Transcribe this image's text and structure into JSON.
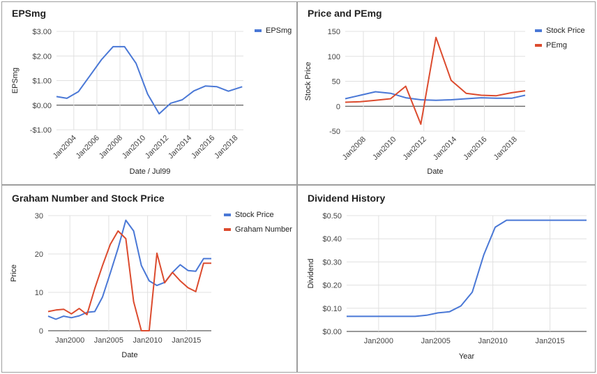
{
  "chart_data": [
    {
      "type": "line",
      "title": "EPSmg",
      "xlabel": "Date / Jul99",
      "ylabel": "EPSmg",
      "x_range": [
        2002.5,
        2018.7
      ],
      "ylim": [
        -1,
        3
      ],
      "y_ticks": [
        -1,
        0,
        1,
        2,
        3
      ],
      "y_tick_labels": [
        "-$1.00",
        "$0.00",
        "$1.00",
        "$2.00",
        "$3.00"
      ],
      "x_ticks": [
        2004,
        2006,
        2008,
        2010,
        2012,
        2014,
        2016,
        2018
      ],
      "x_tick_labels": [
        "Jan2004",
        "Jan2006",
        "Jan2008",
        "Jan2010",
        "Jan2012",
        "Jan2014",
        "Jan2016",
        "Jan2018"
      ],
      "x_ticks_rotated": true,
      "legend": "right",
      "grid": true,
      "series": [
        {
          "name": "EPSmg",
          "color": "#4a78d6",
          "x": [
            2002.5,
            2003.4,
            2004.4,
            2005.4,
            2006.4,
            2007.4,
            2008.4,
            2009.4,
            2010.4,
            2011.4,
            2012.4,
            2013.4,
            2014.4,
            2015.4,
            2016.4,
            2017.4,
            2018.6
          ],
          "y": [
            0.35,
            0.28,
            0.55,
            1.2,
            1.85,
            2.38,
            2.38,
            1.7,
            0.45,
            -0.35,
            0.08,
            0.22,
            0.58,
            0.78,
            0.75,
            0.57,
            0.75
          ]
        }
      ]
    },
    {
      "type": "line",
      "title": "Price and PEmg",
      "xlabel": "Date",
      "ylabel": "Stock Price",
      "x_range": [
        2006.8,
        2018.7
      ],
      "ylim": [
        -50,
        150
      ],
      "y_ticks": [
        -50,
        0,
        50,
        100,
        150
      ],
      "y_tick_labels": [
        "-50",
        "0",
        "50",
        "100",
        "150"
      ],
      "x_ticks": [
        2008,
        2010,
        2012,
        2014,
        2016,
        2018
      ],
      "x_tick_labels": [
        "Jan2008",
        "Jan2010",
        "Jan2012",
        "Jan2014",
        "Jan2016",
        "Jan2018"
      ],
      "x_ticks_rotated": true,
      "legend": "right",
      "grid": true,
      "series": [
        {
          "name": "Stock Price",
          "color": "#4a78d6",
          "x": [
            2006.8,
            2007.8,
            2008.8,
            2009.8,
            2010.8,
            2011.8,
            2012.8,
            2013.8,
            2014.8,
            2015.8,
            2016.8,
            2017.8,
            2018.7
          ],
          "y": [
            15,
            22,
            29,
            26,
            17,
            13,
            12,
            13,
            15,
            17,
            16,
            16,
            22
          ]
        },
        {
          "name": "PEmg",
          "color": "#dc4b2e",
          "x": [
            2006.8,
            2007.8,
            2008.8,
            2009.8,
            2010.8,
            2011.8,
            2012.8,
            2013.8,
            2014.8,
            2015.8,
            2016.8,
            2017.8,
            2018.7
          ],
          "y": [
            8,
            9,
            12,
            15,
            40,
            -36,
            138,
            52,
            26,
            22,
            21,
            27,
            31
          ]
        }
      ]
    },
    {
      "type": "line",
      "title": "Graham Number and Stock Price",
      "xlabel": "Date",
      "ylabel": "Price",
      "x_range": [
        1997.2,
        2018.2
      ],
      "ylim": [
        0,
        30
      ],
      "y_ticks": [
        0,
        10,
        20,
        30
      ],
      "y_tick_labels": [
        "0",
        "10",
        "20",
        "30"
      ],
      "x_ticks": [
        2000,
        2005,
        2010,
        2015
      ],
      "x_tick_labels": [
        "Jan2000",
        "Jan2005",
        "Jan2010",
        "Jan2015"
      ],
      "x_ticks_rotated": false,
      "legend": "right",
      "grid": true,
      "series": [
        {
          "name": "Stock Price",
          "color": "#4a78d6",
          "x": [
            1997.2,
            1998.2,
            1999.2,
            2000.2,
            2001.2,
            2002.2,
            2003.2,
            2004.2,
            2005.2,
            2006.2,
            2007.2,
            2008.2,
            2009.2,
            2010.2,
            2011.2,
            2012.2,
            2013.2,
            2014.2,
            2015.2,
            2016.2,
            2017.2,
            2018.2
          ],
          "y": [
            3.8,
            3.0,
            3.8,
            3.4,
            3.9,
            4.8,
            5.0,
            8.8,
            15.0,
            21.5,
            28.8,
            26.0,
            17.0,
            13.0,
            11.8,
            12.6,
            15.2,
            17.2,
            15.7,
            15.5,
            18.8,
            18.8
          ]
        },
        {
          "name": "Graham Number",
          "color": "#dc4b2e",
          "x": [
            1997.2,
            1998.2,
            1999.2,
            2000.2,
            2001.2,
            2002.2,
            2003.2,
            2004.2,
            2005.2,
            2006.2,
            2007.2,
            2008.2,
            2009.2,
            2010.2,
            2011.2,
            2012.2,
            2013.2,
            2014.2,
            2015.2,
            2016.2,
            2017.2,
            2018.2
          ],
          "y": [
            5.0,
            5.4,
            5.6,
            4.4,
            5.8,
            4.2,
            11.0,
            17.0,
            22.5,
            26.0,
            24.0,
            7.6,
            0,
            0,
            20.2,
            12.5,
            15.2,
            13.0,
            11.2,
            10.2,
            17.6,
            17.6
          ]
        }
      ]
    },
    {
      "type": "line",
      "title": "Dividend History",
      "xlabel": "Year",
      "ylabel": "Dividend",
      "x_range": [
        1997.2,
        2018.2
      ],
      "ylim": [
        0,
        0.5
      ],
      "y_ticks": [
        0,
        0.1,
        0.2,
        0.3,
        0.4,
        0.5
      ],
      "y_tick_labels": [
        "$0.00",
        "$0.10",
        "$0.20",
        "$0.30",
        "$0.40",
        "$0.50"
      ],
      "x_ticks": [
        2000,
        2005,
        2010,
        2015
      ],
      "x_tick_labels": [
        "Jan2000",
        "Jan2005",
        "Jan2010",
        "Jan2015"
      ],
      "x_ticks_rotated": false,
      "legend": "none",
      "grid": true,
      "series": [
        {
          "name": "",
          "color": "#4a78d6",
          "x": [
            1997.2,
            1998.2,
            1999.2,
            2000.2,
            2001.2,
            2002.2,
            2003.2,
            2004.2,
            2005.2,
            2006.2,
            2007.2,
            2008.2,
            2009.2,
            2010.2,
            2011.2,
            2012.2,
            2013.2,
            2014.2,
            2015.2,
            2016.2,
            2017.2,
            2018.2
          ],
          "y": [
            0.065,
            0.065,
            0.065,
            0.065,
            0.065,
            0.065,
            0.065,
            0.07,
            0.08,
            0.085,
            0.11,
            0.17,
            0.33,
            0.45,
            0.48,
            0.48,
            0.48,
            0.48,
            0.48,
            0.48,
            0.48,
            0.48
          ]
        }
      ]
    }
  ]
}
